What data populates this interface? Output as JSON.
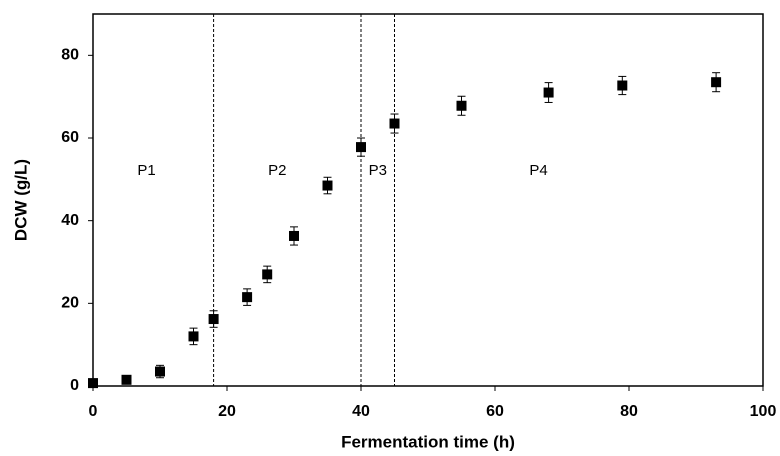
{
  "chart_data": {
    "type": "scatter",
    "xlabel": "Fermentation time (h)",
    "ylabel": "DCW (g/L)",
    "x": [
      0,
      5,
      10,
      15,
      18,
      23,
      26,
      30,
      35,
      40,
      45,
      55,
      68,
      79,
      93
    ],
    "series": [
      {
        "color": "#000000",
        "values": [
          0.7,
          1.5,
          3.5,
          12,
          16.2,
          21.5,
          27,
          36.3,
          48.5,
          57.8,
          63.5,
          67.8,
          71,
          72.7,
          73.5
        ],
        "errors": [
          1,
          1,
          1.5,
          2,
          2,
          2,
          2,
          2.2,
          2,
          2.2,
          2.3,
          2.3,
          2.4,
          2.2,
          2.3
        ]
      }
    ],
    "xlim": [
      0,
      100
    ],
    "xticks": [
      0,
      20,
      40,
      60,
      80,
      100
    ],
    "ylim": [
      0,
      90
    ],
    "yticks": [
      0,
      20,
      40,
      60,
      80
    ],
    "vlines": [
      18,
      40,
      45
    ],
    "annotations": [
      {
        "text": "P1",
        "x": 8,
        "y": 52
      },
      {
        "text": "P2",
        "x": 27.5,
        "y": 52
      },
      {
        "text": "P3",
        "x": 42.5,
        "y": 52
      },
      {
        "text": "P4",
        "x": 66.5,
        "y": 52
      }
    ]
  }
}
